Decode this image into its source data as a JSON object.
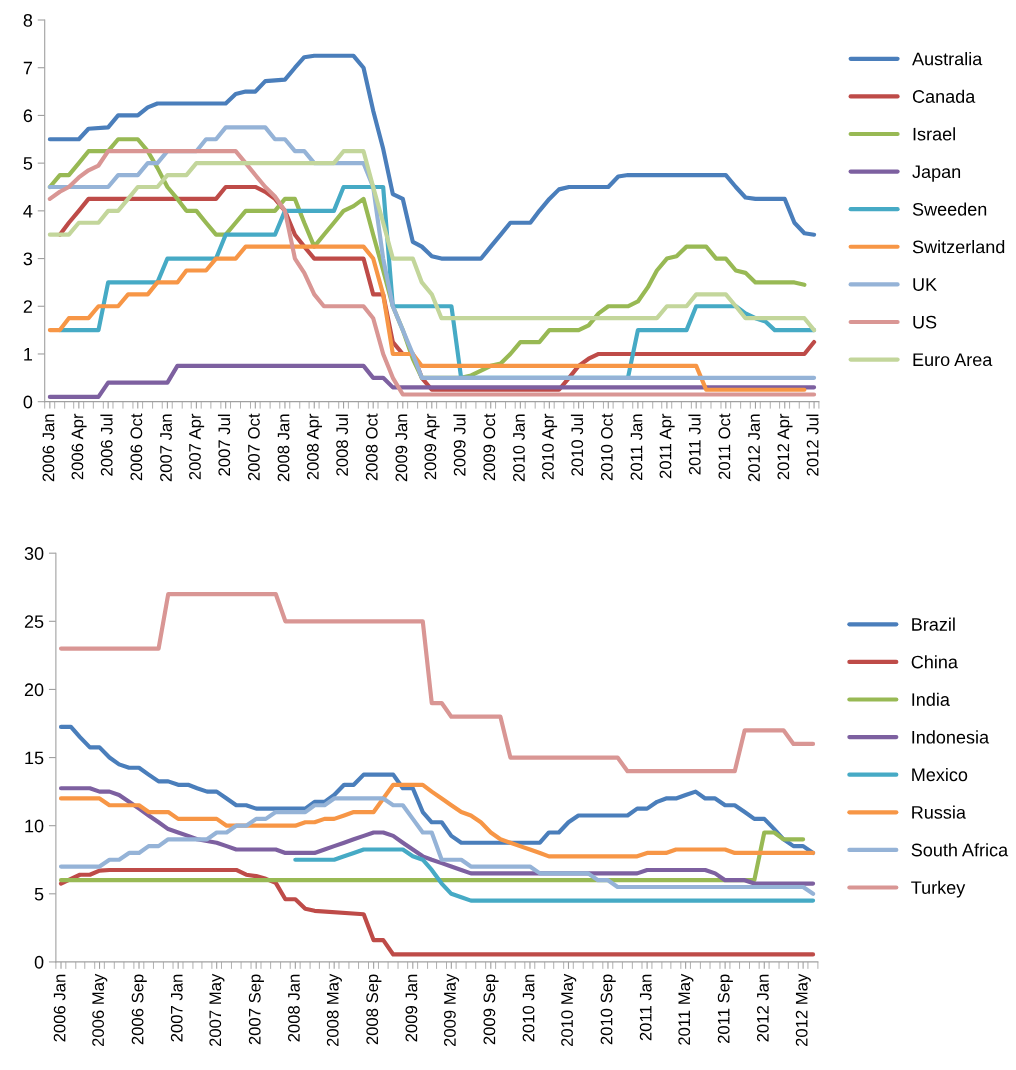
{
  "chart_data": [
    {
      "type": "line",
      "xlim": [
        "2005-12-16",
        "2012-07-16"
      ],
      "ylim": [
        0,
        8
      ],
      "yticks": [
        0,
        1,
        2,
        3,
        4,
        5,
        6,
        7,
        8
      ],
      "grid": false,
      "legend": "right",
      "line_style": "solid",
      "xticks": [
        {
          "value": "2006-01",
          "label": "2006 Jan"
        },
        {
          "value": "2006-04",
          "label": "2006 Apr"
        },
        {
          "value": "2006-07",
          "label": "2006 Jul"
        },
        {
          "value": "2006-10",
          "label": "2006 Oct"
        },
        {
          "value": "2007-01",
          "label": "2007 Jan"
        },
        {
          "value": "2007-04",
          "label": "2007 Apr"
        },
        {
          "value": "2007-07",
          "label": "2007 Jul"
        },
        {
          "value": "2007-10",
          "label": "2007 Oct"
        },
        {
          "value": "2008-01",
          "label": "2008 Jan"
        },
        {
          "value": "2008-04",
          "label": "2008 Apr"
        },
        {
          "value": "2008-07",
          "label": "2008 Jul"
        },
        {
          "value": "2008-10",
          "label": "2008 Oct"
        },
        {
          "value": "2009-01",
          "label": "2009 Jan"
        },
        {
          "value": "2009-04",
          "label": "2009 Apr"
        },
        {
          "value": "2009-07",
          "label": "2009 Jul"
        },
        {
          "value": "2009-10",
          "label": "2009 Oct"
        },
        {
          "value": "2010-01",
          "label": "2010 Jan"
        },
        {
          "value": "2010-04",
          "label": "2010 Apr"
        },
        {
          "value": "2010-07",
          "label": "2010 Jul"
        },
        {
          "value": "2010-10",
          "label": "2010 Oct"
        },
        {
          "value": "2011-01",
          "label": "2011 Jan"
        },
        {
          "value": "2011-04",
          "label": "2011 Apr"
        },
        {
          "value": "2011-07",
          "label": "2011 Jul"
        },
        {
          "value": "2011-10",
          "label": "2011 Oct"
        },
        {
          "value": "2012-01",
          "label": "2012 Jan"
        },
        {
          "value": "2012-04",
          "label": "2012 Apr"
        },
        {
          "value": "2012-07",
          "label": "2012 Jul"
        }
      ],
      "series": [
        {
          "name": "Australia",
          "color": "#4a7ebb",
          "x": [
            "2006-01",
            "2006-04",
            "2006-05",
            "2006-07",
            "2006-08",
            "2006-10",
            "2006-11",
            "2006-12",
            "2007-07",
            "2007-08",
            "2007-09",
            "2007-10",
            "2007-11",
            "2008-01",
            "2008-02",
            "2008-03",
            "2008-04",
            "2008-08",
            "2008-09",
            "2008-10",
            "2008-11",
            "2008-12",
            "2009-01",
            "2009-02",
            "2009-03",
            "2009-04",
            "2009-05",
            "2009-09",
            "2009-10",
            "2009-11",
            "2009-12",
            "2010-02",
            "2010-03",
            "2010-04",
            "2010-05",
            "2010-06",
            "2010-10",
            "2010-11",
            "2010-12",
            "2011-10",
            "2011-11",
            "2011-12",
            "2012-01",
            "2012-04",
            "2012-05",
            "2012-06",
            "2012-07"
          ],
          "values": [
            5.5,
            5.5,
            5.72,
            5.75,
            6.0,
            6.0,
            6.17,
            6.25,
            6.25,
            6.45,
            6.5,
            6.5,
            6.72,
            6.75,
            7.0,
            7.22,
            7.25,
            7.25,
            7.0,
            6.1,
            5.3,
            4.35,
            4.25,
            3.35,
            3.25,
            3.05,
            3.0,
            3.0,
            3.25,
            3.5,
            3.75,
            3.75,
            4.0,
            4.25,
            4.45,
            4.5,
            4.5,
            4.72,
            4.75,
            4.75,
            4.5,
            4.28,
            4.25,
            4.25,
            3.75,
            3.53,
            3.5
          ]
        },
        {
          "name": "Canada",
          "color": "#be4b48",
          "x": [
            "2006-02",
            "2006-03",
            "2006-04",
            "2006-05",
            "2007-06",
            "2007-07",
            "2007-10",
            "2007-11",
            "2007-12",
            "2008-01",
            "2008-02",
            "2008-03",
            "2008-04",
            "2008-09",
            "2008-10",
            "2008-11",
            "2008-12",
            "2009-01",
            "2009-02",
            "2009-03",
            "2009-04",
            "2010-05",
            "2010-06",
            "2010-07",
            "2010-08",
            "2010-09",
            "2012-06",
            "2012-07"
          ],
          "values": [
            3.5,
            3.75,
            4.0,
            4.25,
            4.25,
            4.5,
            4.5,
            4.4,
            4.25,
            4.0,
            3.5,
            3.25,
            3.0,
            3.0,
            2.25,
            2.25,
            1.25,
            1.0,
            1.0,
            0.5,
            0.25,
            0.25,
            0.5,
            0.75,
            0.9,
            1.0,
            1.0,
            1.25
          ]
        },
        {
          "name": "Israel",
          "color": "#98b954",
          "x": [
            "2006-01",
            "2006-02",
            "2006-03",
            "2006-04",
            "2006-05",
            "2006-07",
            "2006-08",
            "2006-10",
            "2006-11",
            "2006-12",
            "2007-01",
            "2007-02",
            "2007-03",
            "2007-04",
            "2007-05",
            "2007-06",
            "2007-07",
            "2007-08",
            "2007-09",
            "2007-12",
            "2008-01",
            "2008-02",
            "2008-03",
            "2008-04",
            "2008-05",
            "2008-06",
            "2008-07",
            "2008-08",
            "2008-09",
            "2008-10",
            "2008-11",
            "2008-12",
            "2009-01",
            "2009-02",
            "2009-03",
            "2009-07",
            "2009-08",
            "2009-09",
            "2009-10",
            "2009-11",
            "2009-12",
            "2010-01",
            "2010-03",
            "2010-04",
            "2010-07",
            "2010-08",
            "2010-09",
            "2010-10",
            "2010-12",
            "2011-01",
            "2011-02",
            "2011-03",
            "2011-04",
            "2011-05",
            "2011-06",
            "2011-08",
            "2011-09",
            "2011-10",
            "2011-11",
            "2011-12",
            "2012-01",
            "2012-05",
            "2012-06"
          ],
          "values": [
            4.5,
            4.75,
            4.75,
            5.0,
            5.25,
            5.25,
            5.5,
            5.5,
            5.25,
            4.9,
            4.5,
            4.25,
            4.0,
            4.0,
            3.75,
            3.5,
            3.5,
            3.75,
            4.0,
            4.0,
            4.25,
            4.25,
            3.75,
            3.25,
            3.5,
            3.75,
            4.0,
            4.1,
            4.25,
            3.5,
            2.75,
            2.0,
            1.5,
            0.9,
            0.5,
            0.5,
            0.55,
            0.65,
            0.75,
            0.8,
            1.0,
            1.25,
            1.25,
            1.5,
            1.5,
            1.6,
            1.85,
            2.0,
            2.0,
            2.1,
            2.4,
            2.75,
            3.0,
            3.05,
            3.25,
            3.25,
            3.0,
            3.0,
            2.75,
            2.7,
            2.5,
            2.5,
            2.45
          ]
        },
        {
          "name": "Japan",
          "color": "#7d60a0",
          "x": [
            "2006-01",
            "2006-06",
            "2006-07",
            "2007-01",
            "2007-02",
            "2008-09",
            "2008-10",
            "2008-11",
            "2008-12",
            "2012-07"
          ],
          "values": [
            0.1,
            0.1,
            0.4,
            0.4,
            0.75,
            0.75,
            0.5,
            0.5,
            0.3,
            0.3
          ]
        },
        {
          "name": "Sweeden",
          "color": "#46aac5",
          "x": [
            "2006-02",
            "2006-06",
            "2006-07",
            "2006-12",
            "2007-01",
            "2007-06",
            "2007-07",
            "2007-12",
            "2008-01",
            "2008-06",
            "2008-07",
            "2008-11",
            "2008-12",
            "2009-06",
            "2009-07",
            "2010-12",
            "2011-01",
            "2011-06",
            "2011-07",
            "2011-11",
            "2011-12",
            "2012-01",
            "2012-02",
            "2012-03",
            "2012-07"
          ],
          "values": [
            1.5,
            1.5,
            2.5,
            2.5,
            3.0,
            3.0,
            3.5,
            3.5,
            4.0,
            4.0,
            4.5,
            4.5,
            2.0,
            2.0,
            0.5,
            0.5,
            1.5,
            1.5,
            2.0,
            2.0,
            1.85,
            1.75,
            1.68,
            1.5,
            1.5
          ]
        },
        {
          "name": "Switzerland",
          "color": "#f79646",
          "x": [
            "2006-01",
            "2006-02",
            "2006-03",
            "2006-05",
            "2006-06",
            "2006-08",
            "2006-09",
            "2006-11",
            "2006-12",
            "2007-02",
            "2007-03",
            "2007-05",
            "2007-06",
            "2007-08",
            "2007-09",
            "2008-09",
            "2008-10",
            "2008-11",
            "2008-12",
            "2009-02",
            "2009-03",
            "2011-07",
            "2011-08",
            "2012-06"
          ],
          "values": [
            1.5,
            1.5,
            1.75,
            1.75,
            2.0,
            2.0,
            2.25,
            2.25,
            2.5,
            2.5,
            2.75,
            2.75,
            3.0,
            3.0,
            3.25,
            3.25,
            3.0,
            2.25,
            1.0,
            1.0,
            0.75,
            0.75,
            0.25,
            0.25
          ]
        },
        {
          "name": "UK",
          "color": "#95b3d7",
          "x": [
            "2006-01",
            "2006-07",
            "2006-08",
            "2006-10",
            "2006-11",
            "2006-12",
            "2007-01",
            "2007-04",
            "2007-05",
            "2007-06",
            "2007-07",
            "2007-11",
            "2007-12",
            "2008-01",
            "2008-02",
            "2008-03",
            "2008-04",
            "2008-09",
            "2008-10",
            "2008-11",
            "2008-12",
            "2009-01",
            "2009-02",
            "2009-03",
            "2012-07"
          ],
          "values": [
            4.5,
            4.5,
            4.75,
            4.75,
            5.0,
            5.0,
            5.25,
            5.25,
            5.5,
            5.5,
            5.75,
            5.75,
            5.5,
            5.5,
            5.25,
            5.25,
            5.0,
            5.0,
            4.5,
            3.0,
            2.0,
            1.5,
            1.0,
            0.5,
            0.5
          ]
        },
        {
          "name": "US",
          "color": "#d99694",
          "x": [
            "2006-01",
            "2006-02",
            "2006-03",
            "2006-04",
            "2006-05",
            "2006-06",
            "2006-07",
            "2007-08",
            "2007-09",
            "2007-10",
            "2007-11",
            "2007-12",
            "2008-01",
            "2008-02",
            "2008-03",
            "2008-04",
            "2008-05",
            "2008-09",
            "2008-10",
            "2008-11",
            "2008-12",
            "2009-01",
            "2012-07"
          ],
          "values": [
            4.25,
            4.4,
            4.5,
            4.7,
            4.85,
            4.95,
            5.25,
            5.25,
            5.0,
            4.75,
            4.5,
            4.3,
            4.0,
            3.0,
            2.7,
            2.25,
            2.0,
            2.0,
            1.75,
            1.0,
            0.5,
            0.15,
            0.15
          ]
        },
        {
          "name": "Euro Area",
          "color": "#c3d69b",
          "x": [
            "2006-01",
            "2006-03",
            "2006-04",
            "2006-06",
            "2006-07",
            "2006-08",
            "2006-09",
            "2006-10",
            "2006-12",
            "2007-01",
            "2007-03",
            "2007-04",
            "2008-06",
            "2008-07",
            "2008-09",
            "2008-10",
            "2008-11",
            "2008-12",
            "2009-02",
            "2009-03",
            "2009-04",
            "2009-05",
            "2011-03",
            "2011-04",
            "2011-06",
            "2011-07",
            "2011-10",
            "2011-11",
            "2011-12",
            "2012-06",
            "2012-07"
          ],
          "values": [
            3.5,
            3.5,
            3.75,
            3.75,
            4.0,
            4.0,
            4.25,
            4.5,
            4.5,
            4.75,
            4.75,
            5.0,
            5.0,
            5.25,
            5.25,
            4.5,
            3.75,
            3.0,
            3.0,
            2.5,
            2.25,
            1.75,
            1.75,
            2.0,
            2.0,
            2.25,
            2.25,
            2.0,
            1.75,
            1.75,
            1.5
          ]
        }
      ]
    },
    {
      "type": "line",
      "xlim": [
        "2005-12-16",
        "2012-06-16"
      ],
      "ylim": [
        0,
        30
      ],
      "yticks": [
        0,
        5,
        10,
        15,
        20,
        25,
        30
      ],
      "grid": false,
      "legend": "right",
      "line_style": "solid",
      "xticks": [
        {
          "value": "2006-01",
          "label": "2006 Jan"
        },
        {
          "value": "2006-05",
          "label": "2006 May"
        },
        {
          "value": "2006-09",
          "label": "2006 Sep"
        },
        {
          "value": "2007-01",
          "label": "2007 Jan"
        },
        {
          "value": "2007-05",
          "label": "2007 May"
        },
        {
          "value": "2007-09",
          "label": "2007 Sep"
        },
        {
          "value": "2008-01",
          "label": "2008 Jan"
        },
        {
          "value": "2008-05",
          "label": "2008 May"
        },
        {
          "value": "2008-09",
          "label": "2008 Sep"
        },
        {
          "value": "2009-01",
          "label": "2009 Jan"
        },
        {
          "value": "2009-05",
          "label": "2009 May"
        },
        {
          "value": "2009-09",
          "label": "2009 Sep"
        },
        {
          "value": "2010-01",
          "label": "2010 Jan"
        },
        {
          "value": "2010-05",
          "label": "2010 May"
        },
        {
          "value": "2010-09",
          "label": "2010 Sep"
        },
        {
          "value": "2011-01",
          "label": "2011 Jan"
        },
        {
          "value": "2011-05",
          "label": "2011 May"
        },
        {
          "value": "2011-09",
          "label": "2011 Sep"
        },
        {
          "value": "2012-01",
          "label": "2012 Jan"
        },
        {
          "value": "2012-05",
          "label": "2012 May"
        }
      ],
      "series": [
        {
          "name": "Brazil",
          "color": "#4a7ebb",
          "x": [
            "2006-01",
            "2006-02",
            "2006-03",
            "2006-04",
            "2006-05",
            "2006-06",
            "2006-07",
            "2006-08",
            "2006-09",
            "2006-10",
            "2006-11",
            "2006-12",
            "2007-01",
            "2007-02",
            "2007-03",
            "2007-04",
            "2007-05",
            "2007-06",
            "2007-07",
            "2007-08",
            "2007-09",
            "2008-02",
            "2008-03",
            "2008-04",
            "2008-05",
            "2008-06",
            "2008-07",
            "2008-08",
            "2008-11",
            "2008-12",
            "2009-01",
            "2009-02",
            "2009-03",
            "2009-04",
            "2009-05",
            "2009-06",
            "2010-02",
            "2010-03",
            "2010-04",
            "2010-05",
            "2010-06",
            "2010-11",
            "2010-12",
            "2011-01",
            "2011-02",
            "2011-03",
            "2011-04",
            "2011-05",
            "2011-06",
            "2011-07",
            "2011-08",
            "2011-09",
            "2011-10",
            "2011-11",
            "2011-12",
            "2012-01",
            "2012-02",
            "2012-03",
            "2012-04",
            "2012-05",
            "2012-06"
          ],
          "values": [
            17.25,
            17.25,
            16.5,
            15.75,
            15.75,
            15.0,
            14.5,
            14.25,
            14.25,
            13.75,
            13.25,
            13.25,
            13.0,
            13.0,
            12.75,
            12.5,
            12.5,
            12.0,
            11.5,
            11.5,
            11.25,
            11.25,
            11.75,
            11.75,
            12.25,
            13.0,
            13.0,
            13.75,
            13.75,
            12.75,
            12.75,
            11.0,
            10.25,
            10.25,
            9.25,
            8.75,
            8.75,
            9.5,
            9.5,
            10.25,
            10.75,
            10.75,
            11.25,
            11.25,
            11.75,
            12.0,
            12.0,
            12.25,
            12.5,
            12.0,
            12.0,
            11.5,
            11.5,
            11.0,
            10.5,
            10.5,
            9.75,
            9.0,
            8.5,
            8.5,
            8.0
          ]
        },
        {
          "name": "China",
          "color": "#be4b48",
          "x": [
            "2006-01",
            "2006-02",
            "2006-03",
            "2006-04",
            "2006-05",
            "2006-06",
            "2007-07",
            "2007-08",
            "2007-09",
            "2007-10",
            "2007-11",
            "2007-12",
            "2008-01",
            "2008-02",
            "2008-03",
            "2008-08",
            "2008-09",
            "2008-10",
            "2008-11",
            "2012-06"
          ],
          "values": [
            5.75,
            6.1,
            6.4,
            6.4,
            6.7,
            6.75,
            6.75,
            6.4,
            6.3,
            6.1,
            5.8,
            4.6,
            4.6,
            3.9,
            3.75,
            3.5,
            1.6,
            1.6,
            0.55,
            0.55
          ]
        },
        {
          "name": "India",
          "color": "#98b954",
          "x": [
            "2006-01",
            "2011-12",
            "2012-01",
            "2012-02",
            "2012-03",
            "2012-05"
          ],
          "values": [
            6.0,
            6.0,
            9.5,
            9.5,
            9.0,
            9.0
          ]
        },
        {
          "name": "Indonesia",
          "color": "#7d60a0",
          "x": [
            "2006-01",
            "2006-04",
            "2006-05",
            "2006-06",
            "2006-07",
            "2006-08",
            "2006-09",
            "2006-10",
            "2006-11",
            "2006-12",
            "2007-01",
            "2007-02",
            "2007-03",
            "2007-05",
            "2007-06",
            "2007-07",
            "2007-11",
            "2007-12",
            "2008-03",
            "2008-04",
            "2008-05",
            "2008-06",
            "2008-07",
            "2008-08",
            "2008-09",
            "2008-10",
            "2008-11",
            "2008-12",
            "2009-01",
            "2009-02",
            "2009-03",
            "2009-04",
            "2009-05",
            "2009-06",
            "2009-07",
            "2010-12",
            "2011-01",
            "2011-07",
            "2011-08",
            "2011-09",
            "2011-11",
            "2011-12",
            "2012-06"
          ],
          "values": [
            12.75,
            12.75,
            12.5,
            12.5,
            12.25,
            11.75,
            11.25,
            10.75,
            10.25,
            9.75,
            9.5,
            9.25,
            9.0,
            8.75,
            8.5,
            8.25,
            8.25,
            8.0,
            8.0,
            8.25,
            8.5,
            8.75,
            9.0,
            9.25,
            9.5,
            9.5,
            9.25,
            8.75,
            8.25,
            7.75,
            7.5,
            7.25,
            7.0,
            6.75,
            6.5,
            6.5,
            6.75,
            6.75,
            6.5,
            6.0,
            6.0,
            5.75,
            5.75
          ]
        },
        {
          "name": "Mexico",
          "color": "#46aac5",
          "x": [
            "2008-01",
            "2008-05",
            "2008-06",
            "2008-07",
            "2008-08",
            "2008-12",
            "2009-01",
            "2009-02",
            "2009-03",
            "2009-04",
            "2009-05",
            "2009-06",
            "2009-07",
            "2012-06"
          ],
          "values": [
            7.5,
            7.5,
            7.75,
            8.0,
            8.25,
            8.25,
            7.75,
            7.5,
            6.75,
            5.75,
            5.0,
            4.75,
            4.5,
            4.5
          ]
        },
        {
          "name": "Russia",
          "color": "#f79646",
          "x": [
            "2006-01",
            "2006-05",
            "2006-06",
            "2006-09",
            "2006-10",
            "2006-12",
            "2007-01",
            "2007-05",
            "2007-06",
            "2008-01",
            "2008-02",
            "2008-03",
            "2008-04",
            "2008-05",
            "2008-06",
            "2008-07",
            "2008-09",
            "2008-10",
            "2008-11",
            "2009-02",
            "2009-03",
            "2009-04",
            "2009-05",
            "2009-06",
            "2009-07",
            "2009-08",
            "2009-09",
            "2009-10",
            "2009-11",
            "2009-12",
            "2010-01",
            "2010-02",
            "2010-03",
            "2010-12",
            "2011-01",
            "2011-03",
            "2011-04",
            "2011-09",
            "2011-10",
            "2012-06"
          ],
          "values": [
            12.0,
            12.0,
            11.5,
            11.5,
            11.0,
            11.0,
            10.5,
            10.5,
            10.0,
            10.0,
            10.25,
            10.25,
            10.5,
            10.5,
            10.75,
            11.0,
            11.0,
            12.0,
            13.0,
            13.0,
            12.5,
            12.0,
            11.5,
            11.0,
            10.75,
            10.25,
            9.5,
            9.0,
            8.75,
            8.5,
            8.25,
            8.0,
            7.75,
            7.75,
            8.0,
            8.0,
            8.25,
            8.25,
            8.0,
            8.0
          ]
        },
        {
          "name": "South Africa",
          "color": "#95b3d7",
          "x": [
            "2006-01",
            "2006-05",
            "2006-06",
            "2006-07",
            "2006-08",
            "2006-09",
            "2006-10",
            "2006-11",
            "2006-12",
            "2007-04",
            "2007-05",
            "2007-06",
            "2007-07",
            "2007-08",
            "2007-09",
            "2007-10",
            "2007-11",
            "2008-02",
            "2008-03",
            "2008-04",
            "2008-05",
            "2008-10",
            "2008-11",
            "2008-12",
            "2009-01",
            "2009-02",
            "2009-03",
            "2009-04",
            "2009-06",
            "2009-07",
            "2010-01",
            "2010-02",
            "2010-07",
            "2010-08",
            "2010-09",
            "2010-10",
            "2012-05",
            "2012-06"
          ],
          "values": [
            7.0,
            7.0,
            7.5,
            7.5,
            8.0,
            8.0,
            8.5,
            8.5,
            9.0,
            9.0,
            9.5,
            9.5,
            10.0,
            10.0,
            10.5,
            10.5,
            11.0,
            11.0,
            11.5,
            11.5,
            12.0,
            12.0,
            11.5,
            11.5,
            10.5,
            9.5,
            9.5,
            7.5,
            7.5,
            7.0,
            7.0,
            6.5,
            6.5,
            6.0,
            6.0,
            5.5,
            5.5,
            5.0
          ]
        },
        {
          "name": "Turkey",
          "color": "#d99694",
          "x": [
            "2006-01",
            "2006-11",
            "2006-12",
            "2007-11",
            "2007-12",
            "2009-02",
            "2009-03",
            "2009-04",
            "2009-05",
            "2009-10",
            "2009-11",
            "2010-10",
            "2010-11",
            "2011-10",
            "2011-11",
            "2012-03",
            "2012-04",
            "2012-06"
          ],
          "values": [
            23.0,
            23.0,
            27.0,
            27.0,
            25.0,
            25.0,
            19.0,
            19.0,
            18.0,
            18.0,
            15.0,
            15.0,
            14.0,
            14.0,
            17.0,
            17.0,
            16.0,
            16.0
          ]
        }
      ]
    }
  ]
}
